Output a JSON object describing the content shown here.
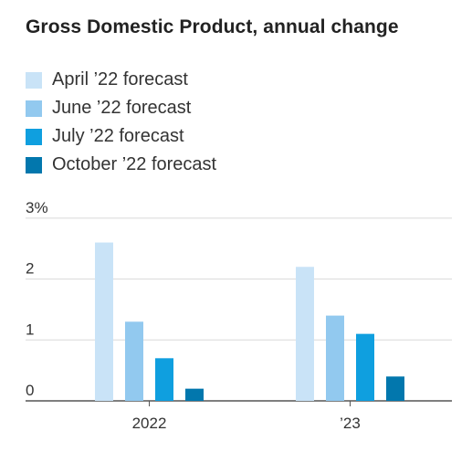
{
  "chart_data": {
    "type": "bar",
    "title": "Gross Domestic Product, annual change",
    "categories": [
      "2022",
      "’23"
    ],
    "series": [
      {
        "name": "April ’22 forecast",
        "values": [
          2.6,
          2.2
        ],
        "color": "#c9e3f7"
      },
      {
        "name": "June ’22 forecast",
        "values": [
          1.3,
          1.4
        ],
        "color": "#92c9ef"
      },
      {
        "name": "July ’22 forecast",
        "values": [
          0.7,
          1.1
        ],
        "color": "#0f9fdf"
      },
      {
        "name": "October ’22 forecast",
        "values": [
          0.2,
          0.4
        ],
        "color": "#0277ad"
      }
    ],
    "ylim": [
      0,
      3
    ],
    "yticks": [
      "0",
      "1",
      "2",
      "3%"
    ],
    "grid": true,
    "legend_position": "top-left"
  }
}
